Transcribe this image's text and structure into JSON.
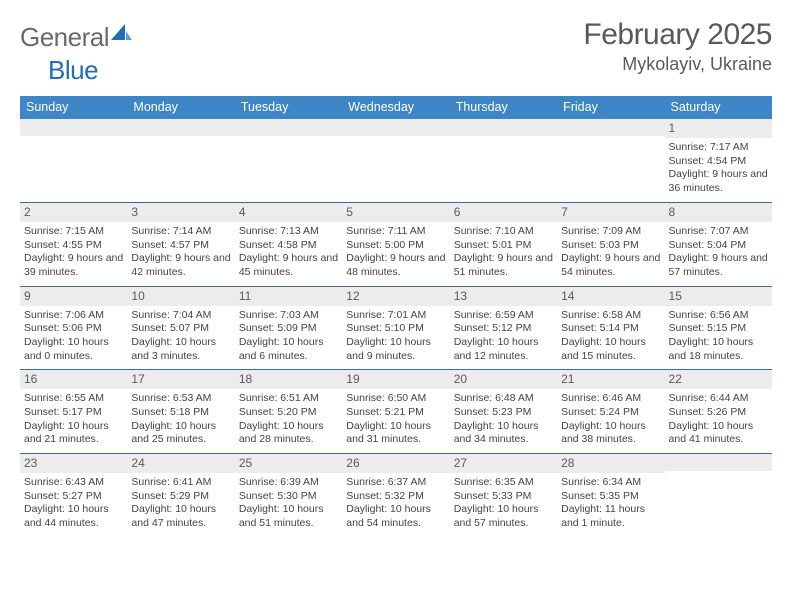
{
  "logo": {
    "text1": "General",
    "text2": "Blue"
  },
  "title": "February 2025",
  "location": "Mykolayiv, Ukraine",
  "colors": {
    "header_bg": "#3d85c6",
    "header_text": "#ffffff",
    "border": "#3a6a9a",
    "daynum_bg": "#ececec",
    "text": "#4a4a4a",
    "logo_gray": "#6a6a6a",
    "logo_blue": "#1f6fb2"
  },
  "day_headers": [
    "Sunday",
    "Monday",
    "Tuesday",
    "Wednesday",
    "Thursday",
    "Friday",
    "Saturday"
  ],
  "weeks": [
    [
      {
        "n": "",
        "sr": "",
        "ss": "",
        "dl": ""
      },
      {
        "n": "",
        "sr": "",
        "ss": "",
        "dl": ""
      },
      {
        "n": "",
        "sr": "",
        "ss": "",
        "dl": ""
      },
      {
        "n": "",
        "sr": "",
        "ss": "",
        "dl": ""
      },
      {
        "n": "",
        "sr": "",
        "ss": "",
        "dl": ""
      },
      {
        "n": "",
        "sr": "",
        "ss": "",
        "dl": ""
      },
      {
        "n": "1",
        "sr": "Sunrise: 7:17 AM",
        "ss": "Sunset: 4:54 PM",
        "dl": "Daylight: 9 hours and 36 minutes."
      }
    ],
    [
      {
        "n": "2",
        "sr": "Sunrise: 7:15 AM",
        "ss": "Sunset: 4:55 PM",
        "dl": "Daylight: 9 hours and 39 minutes."
      },
      {
        "n": "3",
        "sr": "Sunrise: 7:14 AM",
        "ss": "Sunset: 4:57 PM",
        "dl": "Daylight: 9 hours and 42 minutes."
      },
      {
        "n": "4",
        "sr": "Sunrise: 7:13 AM",
        "ss": "Sunset: 4:58 PM",
        "dl": "Daylight: 9 hours and 45 minutes."
      },
      {
        "n": "5",
        "sr": "Sunrise: 7:11 AM",
        "ss": "Sunset: 5:00 PM",
        "dl": "Daylight: 9 hours and 48 minutes."
      },
      {
        "n": "6",
        "sr": "Sunrise: 7:10 AM",
        "ss": "Sunset: 5:01 PM",
        "dl": "Daylight: 9 hours and 51 minutes."
      },
      {
        "n": "7",
        "sr": "Sunrise: 7:09 AM",
        "ss": "Sunset: 5:03 PM",
        "dl": "Daylight: 9 hours and 54 minutes."
      },
      {
        "n": "8",
        "sr": "Sunrise: 7:07 AM",
        "ss": "Sunset: 5:04 PM",
        "dl": "Daylight: 9 hours and 57 minutes."
      }
    ],
    [
      {
        "n": "9",
        "sr": "Sunrise: 7:06 AM",
        "ss": "Sunset: 5:06 PM",
        "dl": "Daylight: 10 hours and 0 minutes."
      },
      {
        "n": "10",
        "sr": "Sunrise: 7:04 AM",
        "ss": "Sunset: 5:07 PM",
        "dl": "Daylight: 10 hours and 3 minutes."
      },
      {
        "n": "11",
        "sr": "Sunrise: 7:03 AM",
        "ss": "Sunset: 5:09 PM",
        "dl": "Daylight: 10 hours and 6 minutes."
      },
      {
        "n": "12",
        "sr": "Sunrise: 7:01 AM",
        "ss": "Sunset: 5:10 PM",
        "dl": "Daylight: 10 hours and 9 minutes."
      },
      {
        "n": "13",
        "sr": "Sunrise: 6:59 AM",
        "ss": "Sunset: 5:12 PM",
        "dl": "Daylight: 10 hours and 12 minutes."
      },
      {
        "n": "14",
        "sr": "Sunrise: 6:58 AM",
        "ss": "Sunset: 5:14 PM",
        "dl": "Daylight: 10 hours and 15 minutes."
      },
      {
        "n": "15",
        "sr": "Sunrise: 6:56 AM",
        "ss": "Sunset: 5:15 PM",
        "dl": "Daylight: 10 hours and 18 minutes."
      }
    ],
    [
      {
        "n": "16",
        "sr": "Sunrise: 6:55 AM",
        "ss": "Sunset: 5:17 PM",
        "dl": "Daylight: 10 hours and 21 minutes."
      },
      {
        "n": "17",
        "sr": "Sunrise: 6:53 AM",
        "ss": "Sunset: 5:18 PM",
        "dl": "Daylight: 10 hours and 25 minutes."
      },
      {
        "n": "18",
        "sr": "Sunrise: 6:51 AM",
        "ss": "Sunset: 5:20 PM",
        "dl": "Daylight: 10 hours and 28 minutes."
      },
      {
        "n": "19",
        "sr": "Sunrise: 6:50 AM",
        "ss": "Sunset: 5:21 PM",
        "dl": "Daylight: 10 hours and 31 minutes."
      },
      {
        "n": "20",
        "sr": "Sunrise: 6:48 AM",
        "ss": "Sunset: 5:23 PM",
        "dl": "Daylight: 10 hours and 34 minutes."
      },
      {
        "n": "21",
        "sr": "Sunrise: 6:46 AM",
        "ss": "Sunset: 5:24 PM",
        "dl": "Daylight: 10 hours and 38 minutes."
      },
      {
        "n": "22",
        "sr": "Sunrise: 6:44 AM",
        "ss": "Sunset: 5:26 PM",
        "dl": "Daylight: 10 hours and 41 minutes."
      }
    ],
    [
      {
        "n": "23",
        "sr": "Sunrise: 6:43 AM",
        "ss": "Sunset: 5:27 PM",
        "dl": "Daylight: 10 hours and 44 minutes."
      },
      {
        "n": "24",
        "sr": "Sunrise: 6:41 AM",
        "ss": "Sunset: 5:29 PM",
        "dl": "Daylight: 10 hours and 47 minutes."
      },
      {
        "n": "25",
        "sr": "Sunrise: 6:39 AM",
        "ss": "Sunset: 5:30 PM",
        "dl": "Daylight: 10 hours and 51 minutes."
      },
      {
        "n": "26",
        "sr": "Sunrise: 6:37 AM",
        "ss": "Sunset: 5:32 PM",
        "dl": "Daylight: 10 hours and 54 minutes."
      },
      {
        "n": "27",
        "sr": "Sunrise: 6:35 AM",
        "ss": "Sunset: 5:33 PM",
        "dl": "Daylight: 10 hours and 57 minutes."
      },
      {
        "n": "28",
        "sr": "Sunrise: 6:34 AM",
        "ss": "Sunset: 5:35 PM",
        "dl": "Daylight: 11 hours and 1 minute."
      },
      {
        "n": "",
        "sr": "",
        "ss": "",
        "dl": ""
      }
    ]
  ]
}
